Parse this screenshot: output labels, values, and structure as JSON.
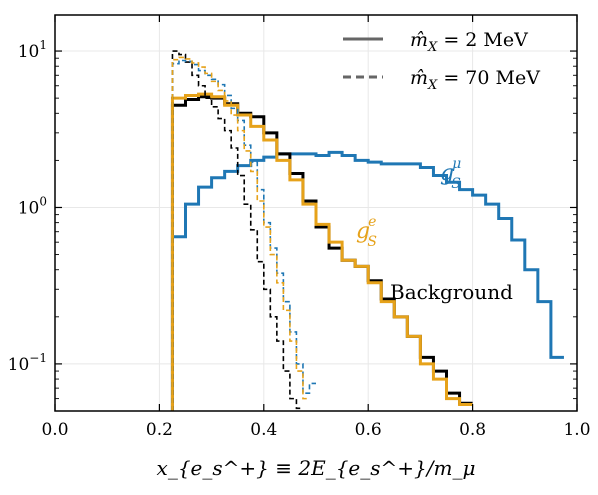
{
  "chart_data": {
    "type": "histogram-step",
    "xlabel": "x_{e_s^+} ≡ 2E_{e_s^+}/m_μ",
    "ylabel": "",
    "xlim": [
      0.0,
      1.0
    ],
    "ylim": [
      0.05,
      17
    ],
    "yscale": "log",
    "grid": true,
    "x_ticks": [
      0.0,
      0.2,
      0.4,
      0.6,
      0.8,
      1.0
    ],
    "x_tick_labels": [
      "0.0",
      "0.2",
      "0.4",
      "0.6",
      "0.8",
      "1.0"
    ],
    "y_ticks": [
      {
        "value": 10,
        "base": "10",
        "exp": "1"
      },
      {
        "value": 1,
        "base": "10",
        "exp": "0"
      },
      {
        "value": 0.1,
        "base": "10",
        "exp": "−1"
      }
    ],
    "legend": {
      "placement": "top-right",
      "entries": [
        {
          "style": "solid",
          "label_main": "m̂",
          "label_sub": "X",
          "label_value": " = 2 MeV"
        },
        {
          "style": "dashed",
          "label_main": "m̂",
          "label_sub": "X",
          "label_value": " = 70 MeV"
        }
      ]
    },
    "annotations": [
      {
        "text": "g",
        "sub": "S",
        "sup": "μ",
        "color": "#1f77b4"
      },
      {
        "text": "g",
        "sub": "S",
        "sup": "e",
        "color": "#e6a21a"
      },
      {
        "text": "Background",
        "color": "#000000"
      }
    ],
    "series": [
      {
        "color": "#1f77b4",
        "style": "solid",
        "width": 3,
        "edges": [
          0.225,
          0.25,
          0.275,
          0.3,
          0.325,
          0.35,
          0.375,
          0.4,
          0.425,
          0.45,
          0.475,
          0.5,
          0.525,
          0.55,
          0.575,
          0.6,
          0.625,
          0.65,
          0.675,
          0.7,
          0.725,
          0.75,
          0.775,
          0.8,
          0.825,
          0.85,
          0.875,
          0.9,
          0.925,
          0.95,
          0.975
        ],
        "values": [
          0.65,
          1.05,
          1.35,
          1.55,
          1.7,
          1.85,
          2.0,
          2.1,
          2.2,
          2.2,
          2.2,
          2.15,
          2.25,
          2.15,
          2.0,
          1.95,
          1.9,
          1.9,
          1.9,
          1.8,
          1.6,
          1.45,
          1.3,
          1.2,
          1.05,
          0.85,
          0.62,
          0.4,
          0.25,
          0.11
        ]
      },
      {
        "color": "#000000",
        "style": "solid",
        "width": 3,
        "edges": [
          0.225,
          0.25,
          0.275,
          0.3,
          0.325,
          0.35,
          0.375,
          0.4,
          0.425,
          0.45,
          0.475,
          0.5,
          0.525,
          0.55,
          0.575,
          0.6,
          0.625,
          0.65,
          0.675,
          0.7,
          0.725,
          0.75,
          0.775,
          0.8
        ],
        "values": [
          4.5,
          4.9,
          5.1,
          5.0,
          4.6,
          4.0,
          3.8,
          3.0,
          2.2,
          1.65,
          1.1,
          0.75,
          0.55,
          0.46,
          0.42,
          0.34,
          0.26,
          0.2,
          0.15,
          0.11,
          0.09,
          0.065,
          0.056
        ]
      },
      {
        "color": "#e6a21a",
        "style": "solid",
        "width": 3,
        "edges": [
          0.225,
          0.25,
          0.275,
          0.3,
          0.325,
          0.35,
          0.375,
          0.4,
          0.425,
          0.45,
          0.475,
          0.5,
          0.525,
          0.55,
          0.575,
          0.6,
          0.625,
          0.65,
          0.675,
          0.7,
          0.725,
          0.75,
          0.775,
          0.8
        ],
        "values": [
          5.0,
          5.2,
          5.3,
          5.1,
          4.5,
          3.9,
          3.3,
          2.7,
          2.0,
          1.5,
          1.05,
          0.78,
          0.6,
          0.46,
          0.42,
          0.33,
          0.25,
          0.2,
          0.15,
          0.1,
          0.08,
          0.06,
          0.055
        ]
      },
      {
        "color": "#000000",
        "style": "dashed",
        "width": 1.6,
        "edges": [
          0.225,
          0.2375,
          0.25,
          0.2625,
          0.275,
          0.2875,
          0.3,
          0.3125,
          0.325,
          0.3375,
          0.35,
          0.3625,
          0.375,
          0.3875,
          0.4,
          0.4125,
          0.425,
          0.4375,
          0.45,
          0.4625,
          0.475
        ],
        "values": [
          10.0,
          9.5,
          8.5,
          7.0,
          6.0,
          5.0,
          4.4,
          3.7,
          3.1,
          2.4,
          1.6,
          1.05,
          0.72,
          0.45,
          0.3,
          0.2,
          0.14,
          0.09,
          0.06,
          0.052
        ]
      },
      {
        "color": "#1f77b4",
        "style": "dashed",
        "width": 1.6,
        "edges": [
          0.225,
          0.2375,
          0.25,
          0.2625,
          0.275,
          0.2875,
          0.3,
          0.3125,
          0.325,
          0.3375,
          0.35,
          0.3625,
          0.375,
          0.3875,
          0.4,
          0.4125,
          0.425,
          0.4375,
          0.45,
          0.4625,
          0.475,
          0.4875,
          0.5
        ],
        "values": [
          8.3,
          8.7,
          8.6,
          8.2,
          7.5,
          7.0,
          6.6,
          6.1,
          5.2,
          4.3,
          3.6,
          2.5,
          1.95,
          1.3,
          0.8,
          0.55,
          0.38,
          0.25,
          0.16,
          0.1,
          0.065,
          0.075
        ]
      },
      {
        "color": "#e6a21a",
        "style": "dashed",
        "width": 1.6,
        "edges": [
          0.225,
          0.2375,
          0.25,
          0.2625,
          0.275,
          0.2875,
          0.3,
          0.3125,
          0.325,
          0.3375,
          0.35,
          0.3625,
          0.375,
          0.3875,
          0.4,
          0.4125,
          0.425,
          0.4375,
          0.45,
          0.4625,
          0.475,
          0.4875
        ],
        "values": [
          8.8,
          9.1,
          8.9,
          8.4,
          7.9,
          7.2,
          6.4,
          5.6,
          4.8,
          3.9,
          3.1,
          2.3,
          1.7,
          1.1,
          0.75,
          0.5,
          0.33,
          0.22,
          0.14,
          0.09,
          0.06
        ]
      }
    ]
  }
}
